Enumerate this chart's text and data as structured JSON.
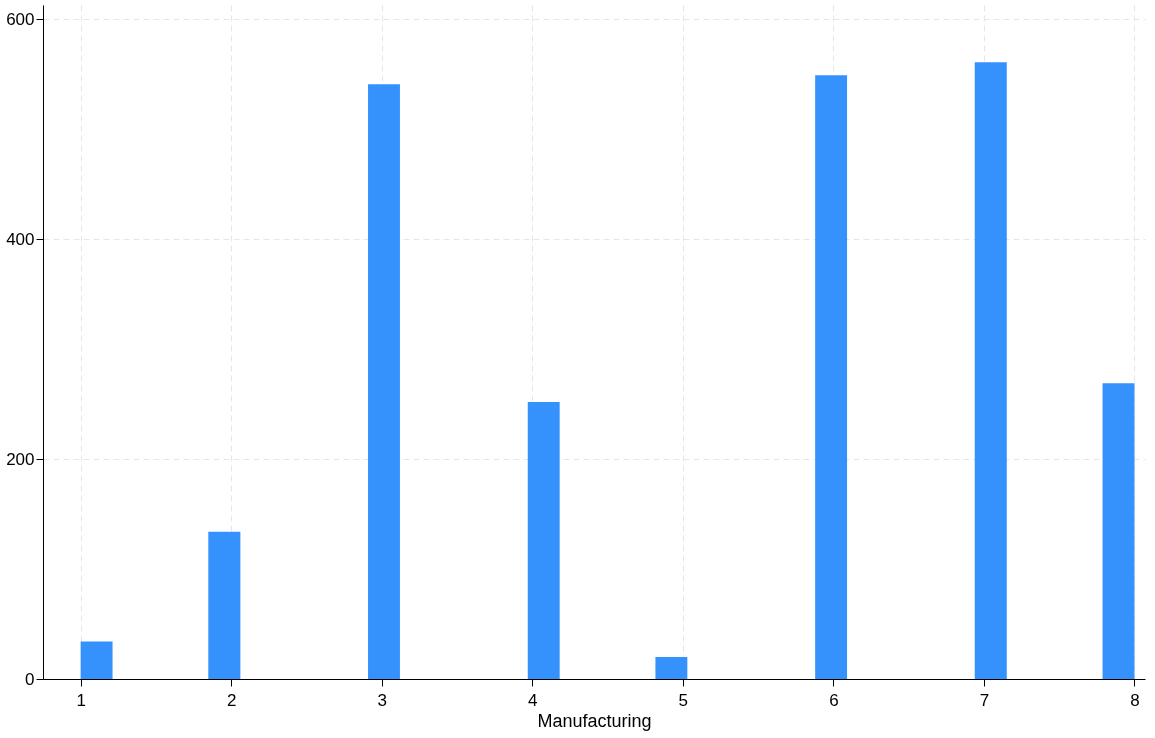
{
  "chart_data": {
    "type": "histogram",
    "xlabel": "Manufacturing",
    "bins": [
      1,
      1.212,
      1.424,
      1.636,
      1.848,
      2.061,
      2.273,
      2.485,
      2.697,
      2.909,
      3.121,
      3.333,
      3.545,
      3.758,
      3.97,
      4.182,
      4.394,
      4.606,
      4.818,
      5.03,
      5.242,
      5.455,
      5.667,
      5.879,
      6.091,
      6.303,
      6.515,
      6.727,
      6.939,
      7.152,
      7.364,
      7.576,
      7.788,
      8
    ],
    "values": [
      34,
      0,
      0,
      0,
      134,
      0,
      0,
      0,
      0,
      541,
      0,
      0,
      0,
      0,
      252,
      0,
      0,
      0,
      20,
      0,
      0,
      0,
      0,
      549,
      0,
      0,
      0,
      0,
      561,
      0,
      0,
      0,
      269
    ],
    "color": "#3592fd",
    "xlim": [
      0.75,
      8.07
    ],
    "xticks": [
      1,
      2,
      3,
      4,
      5,
      6,
      7,
      8
    ],
    "ylim": [
      0,
      613
    ],
    "yticks": [
      0,
      200,
      400,
      600
    ],
    "grid": true
  }
}
